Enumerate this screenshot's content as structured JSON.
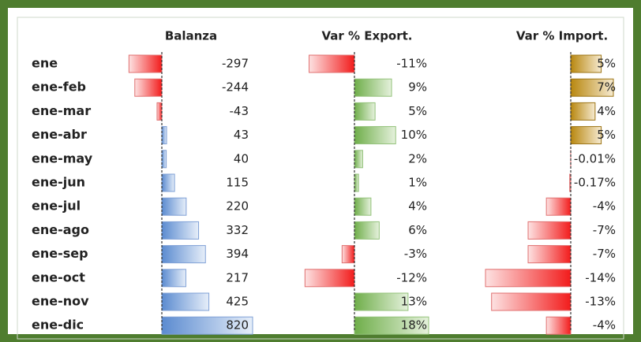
{
  "table": {
    "rows": [
      "ene",
      "ene-feb",
      "ene-mar",
      "ene-abr",
      "ene-may",
      "ene-jun",
      "ene-jul",
      "ene-ago",
      "ene-sep",
      "ene-oct",
      "ene-nov",
      "ene-dic"
    ],
    "columns": [
      {
        "header": "Balanza",
        "values": [
          -297,
          -244,
          -43,
          43,
          40,
          115,
          220,
          332,
          394,
          217,
          425,
          820
        ]
      },
      {
        "header": "Var % Export.",
        "values": [
          -11,
          9,
          5,
          10,
          2,
          1,
          4,
          6,
          -3,
          -12,
          13,
          18
        ],
        "value_labels": [
          "-11%",
          "9%",
          "5%",
          "10%",
          "2%",
          "1%",
          "4%",
          "6%",
          "-3%",
          "-12%",
          "13%",
          "18%"
        ]
      },
      {
        "header": "Var % Import.",
        "values": [
          5,
          7,
          4,
          5,
          -0.01,
          -0.17,
          -4,
          -7,
          -7,
          -14,
          -13,
          -4
        ],
        "value_labels": [
          "5%",
          "7%",
          "4%",
          "5%",
          "-0.01%",
          "-0.17%",
          "-4%",
          "-7%",
          "-7%",
          "-14%",
          "-13%",
          "-4%"
        ]
      }
    ]
  }
}
